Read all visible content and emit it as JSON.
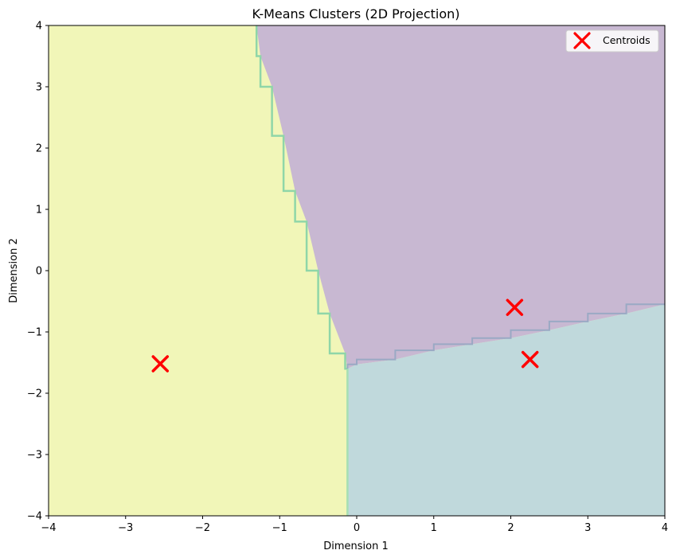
{
  "chart_data": {
    "type": "scatter",
    "title": "K-Means Clusters (2D Projection)",
    "xlabel": "Dimension 1",
    "ylabel": "Dimension 2",
    "xlim": [
      -4,
      4
    ],
    "ylim": [
      -4,
      4
    ],
    "xticks": [
      "−4",
      "−3",
      "−2",
      "−1",
      "0",
      "1",
      "2",
      "3",
      "4"
    ],
    "xtick_values": [
      -4,
      -3,
      -2,
      -1,
      0,
      1,
      2,
      3,
      4
    ],
    "yticks": [
      "−4",
      "−3",
      "−2",
      "−1",
      "0",
      "1",
      "2",
      "3",
      "4"
    ],
    "ytick_values": [
      -4,
      -3,
      -2,
      -1,
      0,
      1,
      2,
      3,
      4
    ],
    "legend": {
      "entries": [
        "Centroids"
      ],
      "location": "top-right"
    },
    "decision_regions": [
      {
        "cluster": "yellow",
        "color": "#f1f6b8"
      },
      {
        "cluster": "purple",
        "color": "#c8b8d2"
      },
      {
        "cluster": "teal",
        "color": "#c0d9dc"
      }
    ],
    "boundaries": {
      "yellow_purple": [
        [
          -1.3,
          4
        ],
        [
          -1.25,
          3.5
        ],
        [
          -1.1,
          3.0
        ],
        [
          -0.95,
          2.2
        ],
        [
          -0.8,
          1.3
        ],
        [
          -0.65,
          0.8
        ],
        [
          -0.5,
          0.0
        ],
        [
          -0.35,
          -0.7
        ],
        [
          -0.15,
          -1.35
        ],
        [
          -0.12,
          -1.6
        ]
      ],
      "yellow_teal": [
        [
          -0.12,
          -1.6
        ],
        [
          -0.12,
          -4
        ]
      ],
      "purple_teal": [
        [
          -0.12,
          -1.6
        ],
        [
          0.0,
          -1.53
        ],
        [
          0.5,
          -1.45
        ],
        [
          1.0,
          -1.3
        ],
        [
          1.5,
          -1.2
        ],
        [
          2.0,
          -1.1
        ],
        [
          2.5,
          -0.97
        ],
        [
          3.0,
          -0.83
        ],
        [
          3.5,
          -0.7
        ],
        [
          4.0,
          -0.55
        ]
      ]
    },
    "centroids": {
      "name": "Centroids",
      "marker": "x",
      "color": "#ff0000",
      "x": [
        -2.55,
        2.05,
        2.25
      ],
      "y": [
        -1.52,
        -0.6,
        -1.45
      ]
    }
  }
}
